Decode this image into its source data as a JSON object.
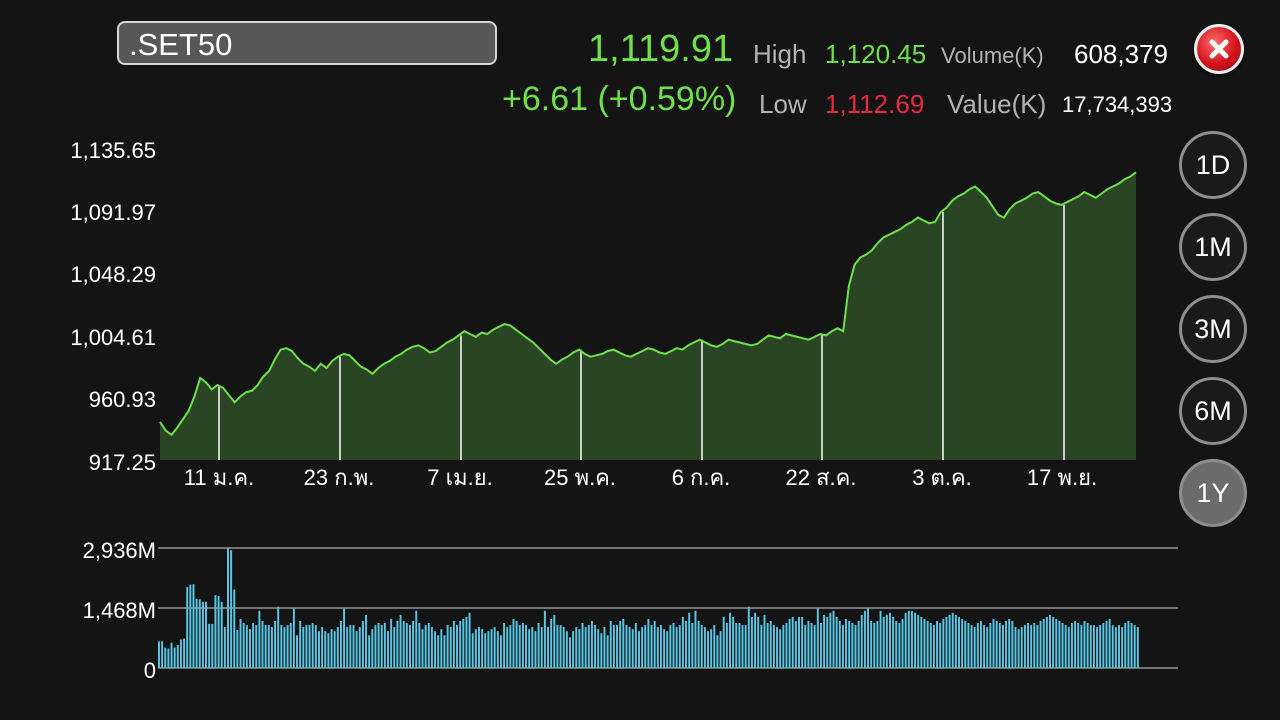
{
  "symbol": ".SET50",
  "quote": {
    "last": "1,119.91",
    "change": "+6.61 (+0.59%)",
    "high_label": "High",
    "high": "1,120.45",
    "low_label": "Low",
    "low": "1,112.69",
    "volume_label": "Volume(K)",
    "volume": "608,379",
    "value_label": "Value(K)",
    "value": "17,734,393"
  },
  "ranges": [
    {
      "label": "1D",
      "active": false
    },
    {
      "label": "1M",
      "active": false
    },
    {
      "label": "3M",
      "active": false
    },
    {
      "label": "6M",
      "active": false
    },
    {
      "label": "1Y",
      "active": true
    }
  ],
  "colors": {
    "line": "#6ee04a",
    "area": "#2a4523",
    "volume_bar": "#58c7e6",
    "up": "#6ee04a",
    "down": "#e32a41"
  },
  "icons": {
    "close": "close-icon"
  },
  "chart_data": [
    {
      "type": "area",
      "y_ticks": [
        "1,135.65",
        "1,091.97",
        "1,048.29",
        "1,004.61",
        "960.93",
        "917.25"
      ],
      "ylim": [
        917.25,
        1135.65
      ],
      "x_ticks": [
        "11 ม.ค.",
        "23 ก.พ.",
        "7 เม.ย.",
        "25 พ.ค.",
        "6 ก.ค.",
        "22 ส.ค.",
        "3 ต.ค.",
        "17 พ.ย."
      ],
      "series": [
        {
          "values": [
            944,
            938,
            935,
            940,
            946,
            952,
            962,
            975,
            972,
            967,
            970,
            968,
            963,
            958,
            962,
            965,
            966,
            970,
            976,
            980,
            988,
            995,
            996,
            994,
            989,
            985,
            983,
            980,
            985,
            982,
            987,
            990,
            992,
            991,
            987,
            983,
            981,
            978,
            982,
            985,
            987,
            990,
            992,
            995,
            997,
            998,
            996,
            993,
            994,
            997,
            1000,
            1002,
            1005,
            1008,
            1006,
            1004,
            1007,
            1006,
            1009,
            1011,
            1013,
            1012,
            1009,
            1006,
            1003,
            1000,
            996,
            992,
            988,
            985,
            988,
            990,
            993,
            995,
            992,
            990,
            991,
            992,
            994,
            995,
            993,
            991,
            990,
            992,
            994,
            996,
            995,
            993,
            992,
            994,
            996,
            995,
            998,
            1000,
            1002,
            1000,
            998,
            997,
            999,
            1002,
            1001,
            1000,
            999,
            998,
            999,
            1002,
            1005,
            1004,
            1003,
            1006,
            1005,
            1004,
            1003,
            1002,
            1004,
            1006,
            1005,
            1008,
            1010,
            1008,
            1040,
            1055,
            1060,
            1062,
            1065,
            1070,
            1074,
            1076,
            1078,
            1080,
            1083,
            1085,
            1088,
            1086,
            1084,
            1085,
            1092,
            1095,
            1100,
            1103,
            1105,
            1108,
            1110,
            1106,
            1102,
            1096,
            1090,
            1088,
            1094,
            1098,
            1100,
            1102,
            1105,
            1106,
            1103,
            1100,
            1098,
            1097,
            1099,
            1101,
            1103,
            1106,
            1104,
            1102,
            1105,
            1108,
            1110,
            1112,
            1115,
            1117,
            1119.91
          ]
        }
      ]
    },
    {
      "type": "bar",
      "y_ticks": [
        "2,936M",
        "1,468M",
        "0"
      ],
      "ylim": [
        0,
        2936
      ],
      "series": [
        {
          "values": [
            650,
            650,
            500,
            480,
            620,
            500,
            560,
            700,
            720,
            1980,
            2040,
            2050,
            1690,
            1680,
            1620,
            1620,
            1080,
            1080,
            1780,
            1760,
            1620,
            1000,
            2936,
            2880,
            1920,
            930,
            1200,
            1100,
            1050,
            950,
            1100,
            1050,
            1400,
            1150,
            1050,
            1050,
            1000,
            1150,
            1500,
            1050,
            1000,
            1050,
            1100,
            1450,
            800,
            1150,
            1000,
            1050,
            1050,
            1100,
            1050,
            900,
            1000,
            900,
            850,
            950,
            900,
            1000,
            1150,
            1450,
            1000,
            1050,
            1050,
            900,
            1000,
            1150,
            1300,
            800,
            950,
            1050,
            1100,
            1050,
            1100,
            900,
            1200,
            1000,
            1150,
            1300,
            1150,
            1100,
            1050,
            1150,
            1400,
            1100,
            950,
            1050,
            1100,
            1000,
            900,
            800,
            950,
            800,
            1050,
            1000,
            1150,
            1050,
            1150,
            1200,
            1250,
            1350,
            850,
            950,
            1000,
            950,
            850,
            900,
            950,
            1000,
            900,
            800,
            1100,
            1000,
            1050,
            1200,
            1150,
            1050,
            1100,
            1050,
            950,
            1000,
            900,
            1100,
            1000,
            1400,
            1000,
            1200,
            1300,
            1050,
            1050,
            1000,
            900,
            750,
            900,
            1000,
            950,
            1100,
            1000,
            1050,
            1150,
            1050,
            950,
            850,
            1000,
            800,
            1150,
            1050,
            1050,
            1150,
            1200,
            1050,
            1000,
            950,
            1100,
            900,
            1000,
            1050,
            1200,
            1050,
            1150,
            1000,
            1050,
            950,
            900,
            1050,
            1100,
            1000,
            1050,
            1250,
            1150,
            1350,
            1100,
            1400,
            1150,
            1050,
            1000,
            900,
            950,
            1050,
            800,
            900,
            1250,
            1100,
            1350,
            1250,
            1100,
            1100,
            1050,
            1050,
            1500,
            1250,
            1350,
            1250,
            1050,
            1300,
            1100,
            1150,
            1050,
            1000,
            950,
            1050,
            1100,
            1200,
            1250,
            1150,
            1250,
            1250,
            1050,
            1150,
            1100,
            1050,
            1450,
            1100,
            1300,
            1250,
            1350,
            1400,
            1250,
            1150,
            1050,
            1200,
            1150,
            1100,
            1050,
            1150,
            1300,
            1400,
            1450,
            1150,
            1100,
            1150,
            1400,
            1250,
            1300,
            1350,
            1250,
            1150,
            1100,
            1200,
            1350,
            1400,
            1400,
            1350,
            1300,
            1250,
            1200,
            1150,
            1100,
            1050,
            1150,
            1100,
            1200,
            1250,
            1300,
            1350,
            1300,
            1250,
            1200,
            1150,
            1100,
            1050,
            1000,
            1100,
            1150,
            1050,
            1000,
            1100,
            1200,
            1150,
            1100,
            1050,
            1150,
            1200,
            1150,
            1000,
            950,
            1000,
            1050,
            1100,
            1050,
            1100,
            1050,
            1150,
            1200,
            1250,
            1300,
            1250,
            1200,
            1150,
            1100,
            1050,
            1000,
            1100,
            1150,
            1100,
            1050,
            1150,
            1100,
            1050,
            1050,
            1000,
            1050,
            1100,
            1150,
            1200,
            1050,
            1000,
            1050,
            1000,
            1100,
            1150,
            1100,
            1050,
            1000
          ]
        }
      ]
    }
  ]
}
